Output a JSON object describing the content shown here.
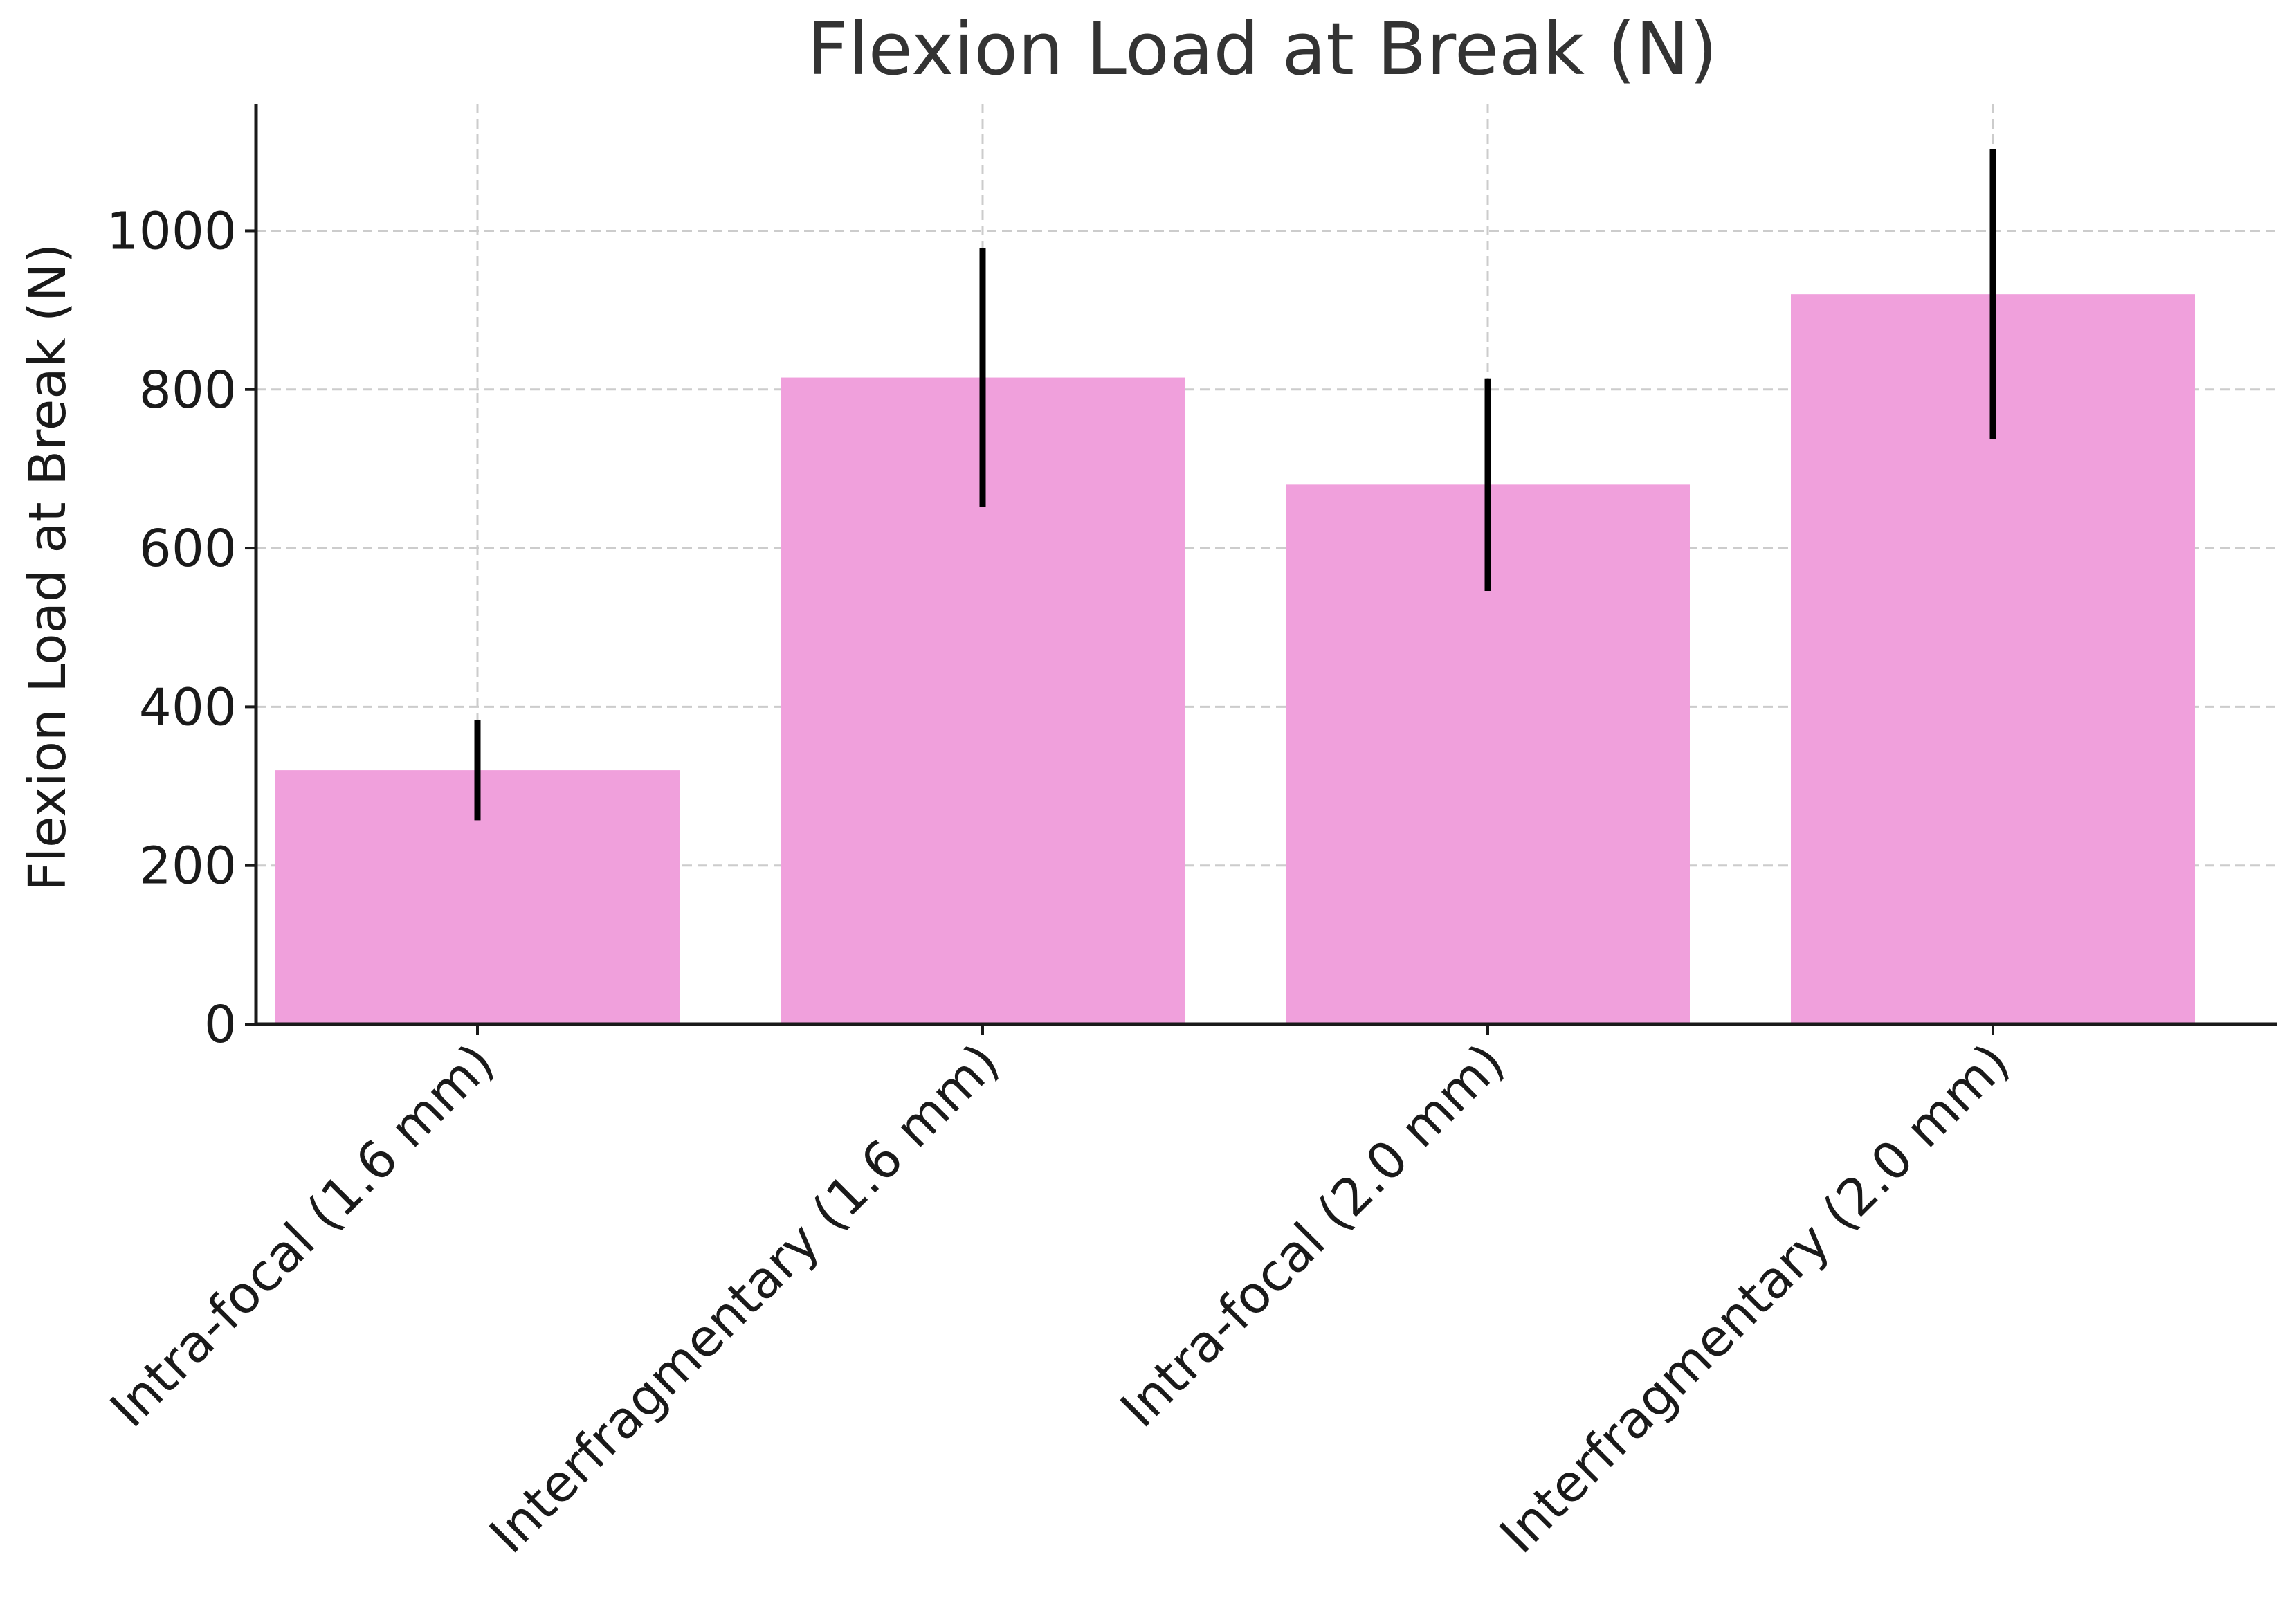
{
  "chart_data": {
    "type": "bar",
    "title": "Flexion Load at Break (N)",
    "xlabel": "",
    "ylabel": "Flexion Load at Break (N)",
    "categories": [
      "Intra-focal (1.6 mm)",
      "Interfragmentary (1.6 mm)",
      "Intra-focal (2.0 mm)",
      "Interfragmentary (2.0 mm)"
    ],
    "values": [
      320,
      815,
      680,
      920
    ],
    "error": [
      63,
      163,
      134,
      183
    ],
    "ylim": [
      0,
      1160
    ],
    "yticks": [
      0,
      200,
      400,
      600,
      800,
      1000
    ],
    "ytick_labels": [
      "0",
      "200",
      "400",
      "600",
      "800",
      "1000"
    ],
    "grid": true,
    "colors": {
      "bar": "#f0a0dc",
      "error": "#000000",
      "grid": "#cccccc",
      "axis": "#1a1a1a"
    }
  }
}
